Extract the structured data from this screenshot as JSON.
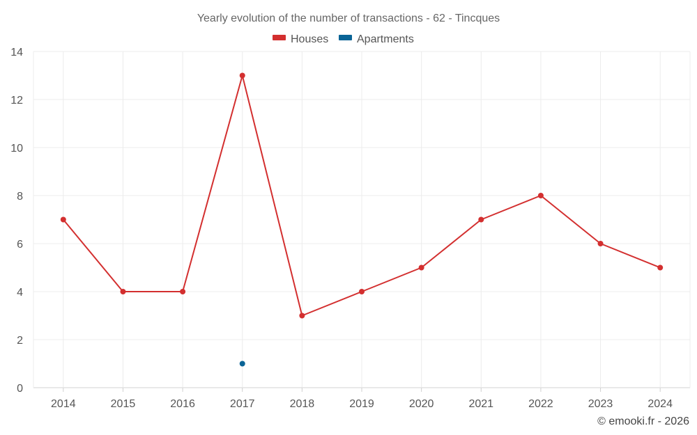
{
  "chart_data": {
    "type": "line",
    "title": "Yearly evolution of the number of transactions - 62 - Tincques",
    "xlabel": "",
    "ylabel": "",
    "categories": [
      "2014",
      "2015",
      "2016",
      "2017",
      "2018",
      "2019",
      "2020",
      "2021",
      "2022",
      "2023",
      "2024"
    ],
    "ylim": [
      0,
      14
    ],
    "yticks": [
      0,
      2,
      4,
      6,
      8,
      10,
      12,
      14
    ],
    "grid": true,
    "legend_position": "top-center",
    "series": [
      {
        "name": "Houses",
        "color": "#d32f2f",
        "show_line": true,
        "values": [
          7,
          4,
          4,
          13,
          3,
          4,
          5,
          7,
          8,
          6,
          5
        ]
      },
      {
        "name": "Apartments",
        "color": "#0a6496",
        "show_line": false,
        "values": [
          null,
          null,
          null,
          1,
          null,
          null,
          null,
          null,
          null,
          null,
          null
        ]
      }
    ],
    "credit": "© emooki.fr - 2026"
  }
}
